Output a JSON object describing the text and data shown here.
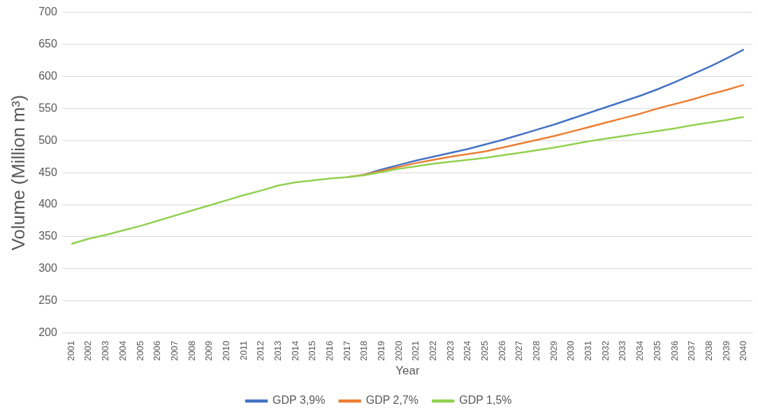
{
  "chart_data": {
    "type": "line",
    "xlabel": "Year",
    "ylabel": "Volume (Million m³)",
    "categories": [
      "2001",
      "2002",
      "2003",
      "2004",
      "2005",
      "2006",
      "2007",
      "2008",
      "2009",
      "2010",
      "2011",
      "2012",
      "2013",
      "2014",
      "2015",
      "2016",
      "2017",
      "2018",
      "2019",
      "2020",
      "2021",
      "2022",
      "2023",
      "2024",
      "2025",
      "2026",
      "2027",
      "2028",
      "2029",
      "2030",
      "2031",
      "2032",
      "2033",
      "2034",
      "2035",
      "2036",
      "2037",
      "2038",
      "2039",
      "2040"
    ],
    "series": [
      {
        "name": "GDP 3,9%",
        "color": "#4472c4",
        "values": [
          null,
          null,
          null,
          null,
          null,
          null,
          null,
          null,
          null,
          null,
          null,
          null,
          null,
          null,
          null,
          null,
          null,
          447,
          455,
          462,
          469,
          475,
          481,
          487,
          494,
          501,
          509,
          517,
          525,
          534,
          543,
          552,
          561,
          570,
          580,
          591,
          603,
          615,
          628,
          642
        ]
      },
      {
        "name": "GDP 2,7%",
        "color": "#ed7d31",
        "values": [
          null,
          null,
          null,
          null,
          null,
          null,
          null,
          null,
          null,
          null,
          null,
          null,
          null,
          null,
          null,
          null,
          443,
          447,
          453,
          459,
          465,
          470,
          475,
          479,
          483,
          489,
          495,
          501,
          507,
          514,
          521,
          528,
          535,
          542,
          550,
          557,
          564,
          572,
          579,
          587
        ]
      },
      {
        "name": "GDP 1,5%",
        "color": "#92d050",
        "values": [
          339,
          347,
          353,
          360,
          367,
          375,
          383,
          391,
          399,
          407,
          415,
          422,
          430,
          435,
          438,
          441,
          443,
          446,
          451,
          456,
          460,
          464,
          467,
          470,
          473,
          477,
          481,
          485,
          489,
          494,
          499,
          503,
          507,
          511,
          515,
          519,
          524,
          528,
          532,
          537
        ]
      }
    ],
    "ylim": [
      200,
      700
    ],
    "yticks": [
      200,
      250,
      300,
      350,
      400,
      450,
      500,
      550,
      600,
      650,
      700
    ],
    "grid": "y",
    "legend": "bottom",
    "marker": "none",
    "line_style": "solid"
  }
}
